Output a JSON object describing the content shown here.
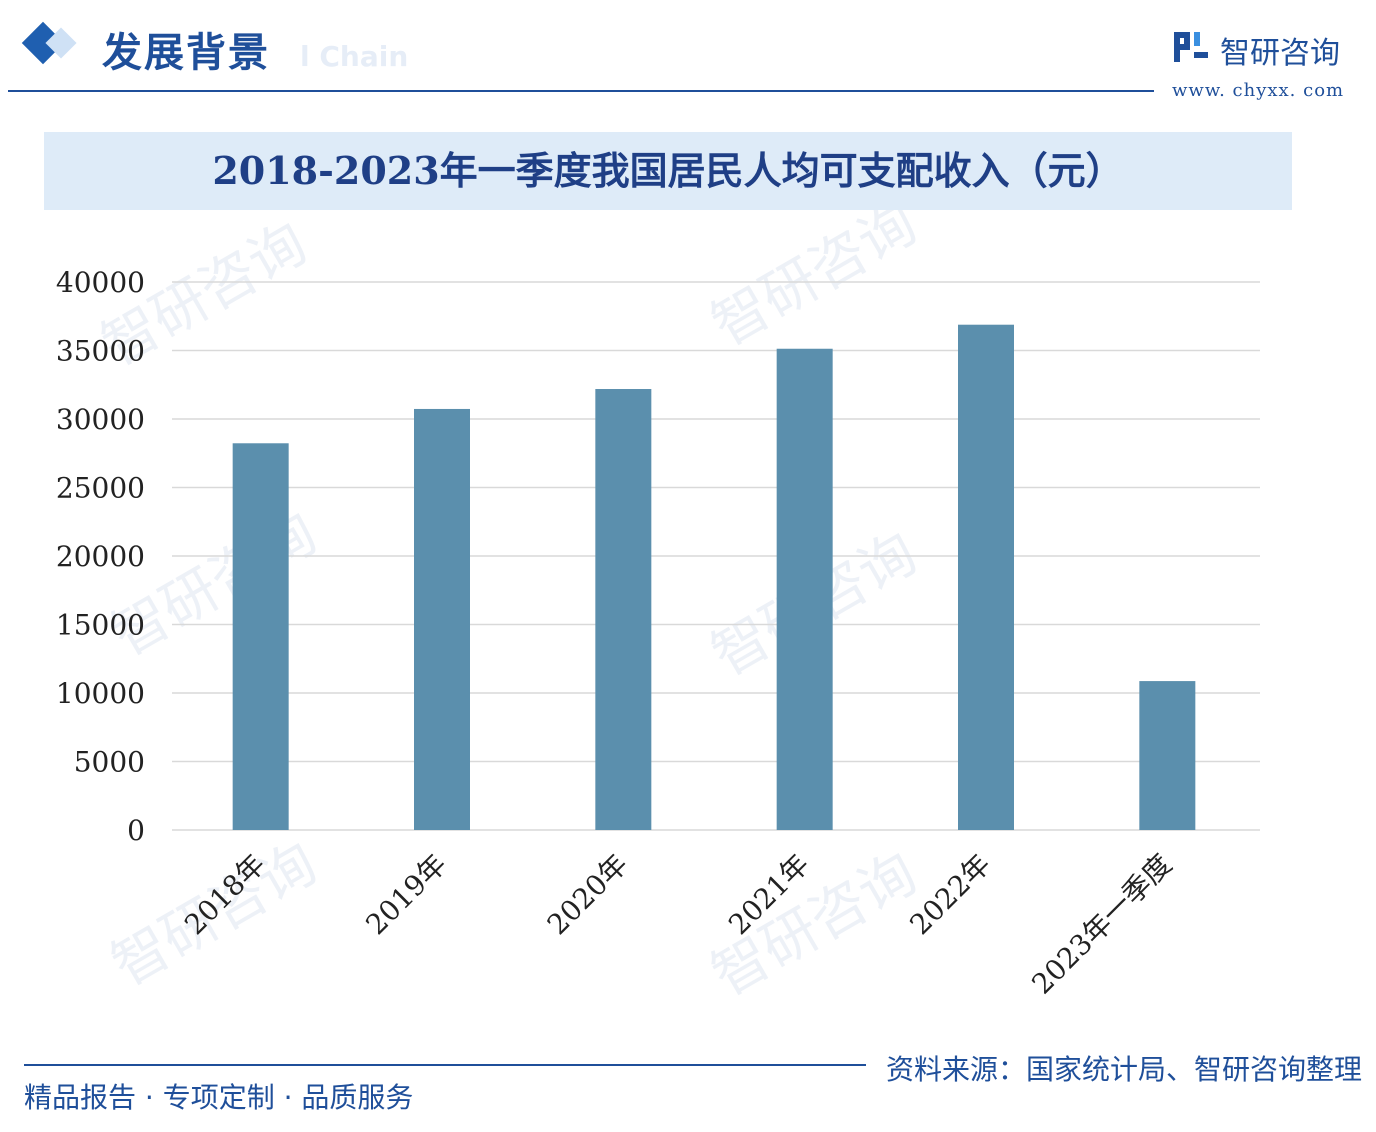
{
  "header": {
    "section_title": "发展背景",
    "section_subtitle": "l Chain",
    "brand_name": "智研咨询",
    "brand_url": "www. chyxx. com"
  },
  "footer": {
    "tagline": "精品报告 · 专项定制 · 品质服务",
    "source": "资料来源：国家统计局、智研咨询整理"
  },
  "watermark": {
    "text": "智研咨询"
  },
  "colors": {
    "bar": "#5b8fad",
    "accent": "#1f4f9a",
    "title_band": "#deebf8",
    "grid": "#d9d9d9"
  },
  "chart_data": {
    "type": "bar",
    "title": "2018-2023年一季度我国居民人均可支配收入（元）",
    "categories": [
      "2018年",
      "2019年",
      "2020年",
      "2021年",
      "2022年",
      "2023年一季度"
    ],
    "values": [
      28228,
      30733,
      32189,
      35128,
      36883,
      10870
    ],
    "xlabel": "",
    "ylabel": "",
    "ylim": [
      0,
      40000
    ],
    "yticks": [
      "0",
      "5000",
      "10000",
      "15000",
      "20000",
      "25000",
      "30000",
      "35000",
      "40000"
    ],
    "grid": true,
    "legend": "none"
  }
}
